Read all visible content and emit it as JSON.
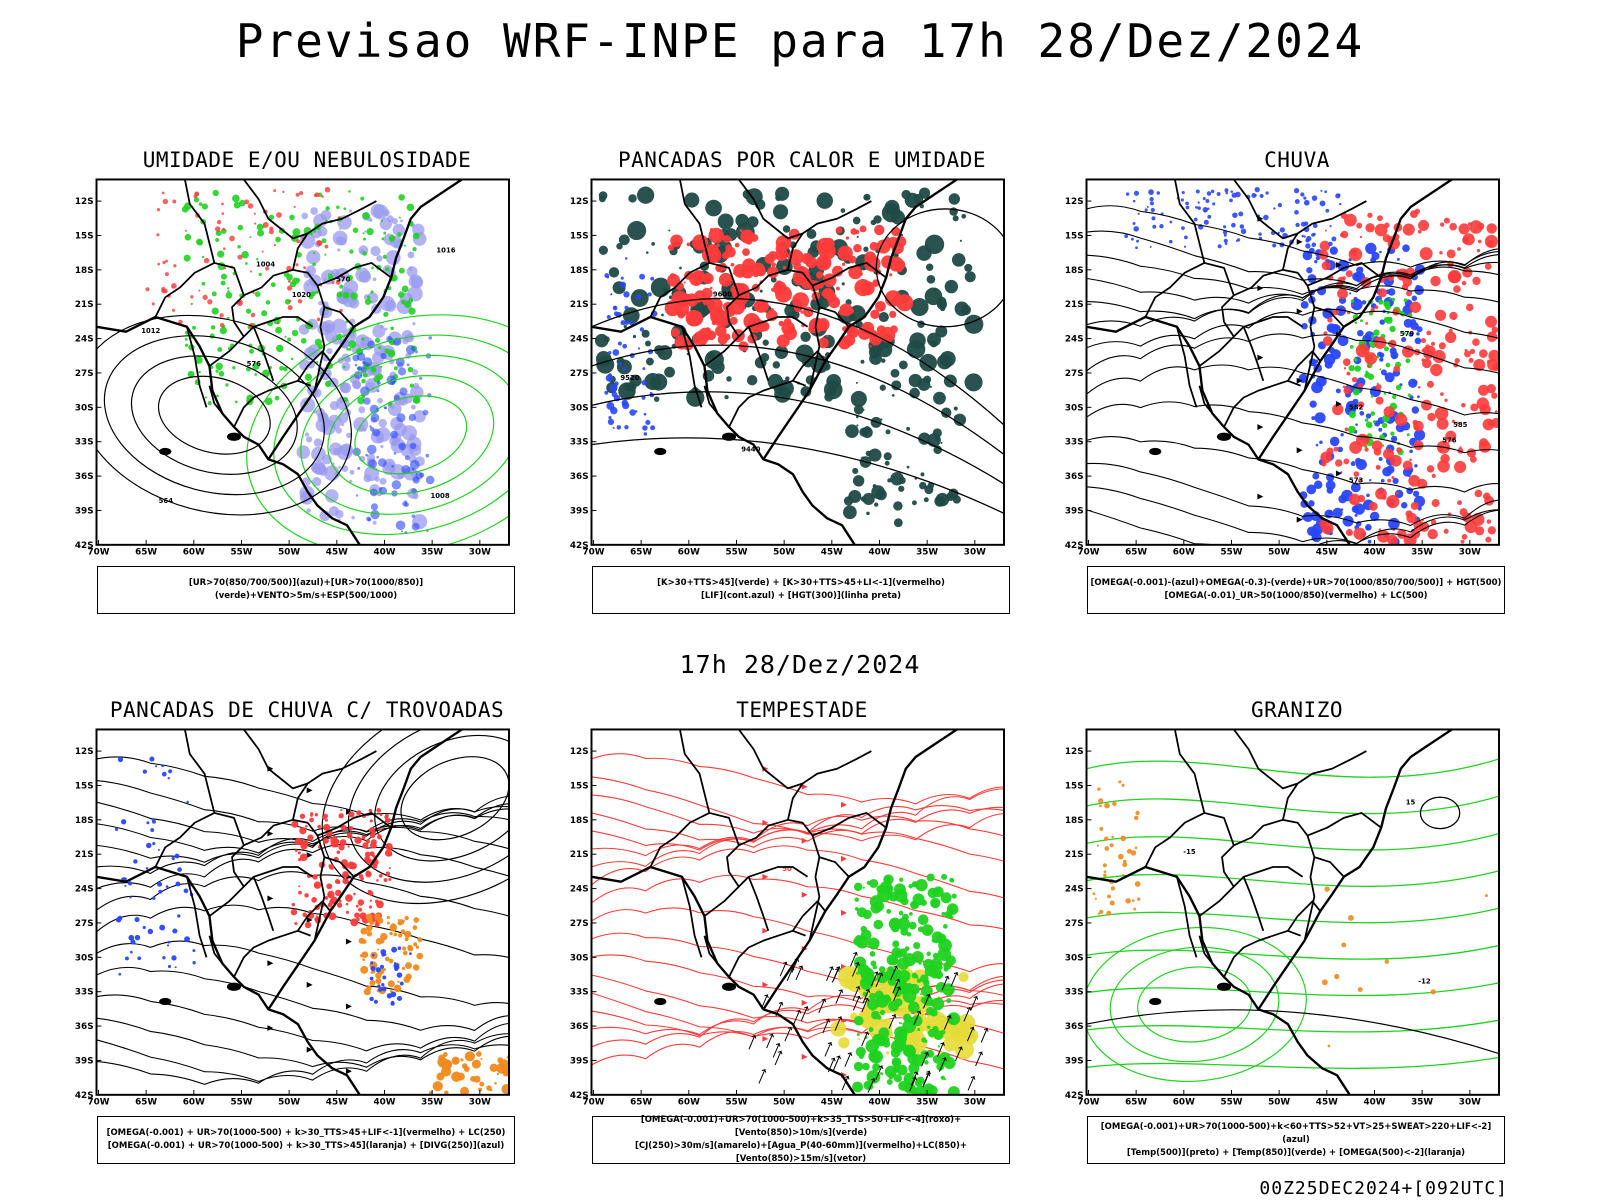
{
  "header": {
    "title": "Previsao WRF-INPE  para 17h 28/Dez/2024",
    "subtitle": "17h 28/Dez/2024",
    "footer": "00Z25DEC2024+[092UTC]"
  },
  "axes": {
    "lat_labels": [
      "12S",
      "15S",
      "18S",
      "21S",
      "24S",
      "27S",
      "30S",
      "33S",
      "36S",
      "39S",
      "42S"
    ],
    "lon_labels": [
      "70W",
      "65W",
      "60W",
      "55W",
      "50W",
      "45W",
      "40W",
      "35W",
      "30W"
    ]
  },
  "colors": {
    "blue": "#2846ff",
    "green": "#1fd21f",
    "red": "#ff3a3a",
    "dark_teal": "#1f4a46",
    "orange": "#f08a1e",
    "yellow": "#e6dc3a",
    "lavender": "#9a9af0"
  },
  "panels": [
    {
      "title": "UMIDADE E/OU NEBULOSIDADE",
      "legend_lines": [
        "[UR>70(850/700/500)](azul)+[UR>70(1000/850)](verde)+VENTO>5m/s+ESP(500/1000)"
      ],
      "contour_labels": [
        "1008",
        "1012",
        "1016",
        "576",
        "570",
        "564",
        "1004",
        "1020"
      ]
    },
    {
      "title": "PANCADAS POR CALOR E UMIDADE",
      "legend_lines": [
        "[K>30+TTS>45](verde) + [K>30+TTS>45+LI<-1](vermelho)",
        "[LIF](cont.azul) + [HGT(300)](linha preta)"
      ],
      "contour_labels": [
        "9600",
        "9520",
        "9440"
      ]
    },
    {
      "title": "CHUVA",
      "legend_lines": [
        "[OMEGA(-0.001)-(azul)+OMEGA(-0.3)-(verde)+UR>70(1000/850/700/500)] + HGT(500)",
        "[OMEGA(-0.01)_UR>50(1000/850)(vermelho) + LC(500)"
      ],
      "contour_labels": [
        "582",
        "585",
        "579",
        "576",
        "573"
      ]
    },
    {
      "title": "PANCADAS DE CHUVA C/ TROVOADAS",
      "legend_lines": [
        "[OMEGA(-0.001) + UR>70(1000-500) + k>30_TTS>45+LIF<-1](vermelho) + LC(250)",
        "[OMEGA(-0.001) + UR>70(1000-500) + k>30_TTS>45](laranja) + [DIVG(250)](azul)"
      ],
      "contour_labels": []
    },
    {
      "title": "TEMPESTADE",
      "legend_lines": [
        "[OMEGA(-0.001)+UR>70(1000-500)+k>35_TTS>50+LIF<-4](roxo)+[Vento(850)>10m/s](verde)",
        "[CJ(250)>30m/s](amarelo)+[Agua_P(40-60mm)](vermelho)+LC(850)+[Vento(850)>15m/s](vetor)"
      ],
      "contour_labels": [
        "50"
      ]
    },
    {
      "title": "GRANIZO",
      "legend_lines": [
        "[OMEGA(-0.001)+UR>70(1000-500)+k<60+TTS>52+VT>25+SWEAT>220+LIF<-2](azul)",
        "[Temp(500)](preto) + [Temp(850)](verde) + [OMEGA(500)<-2](laranja)"
      ],
      "contour_labels": [
        "-12",
        "15",
        "-15"
      ]
    }
  ]
}
